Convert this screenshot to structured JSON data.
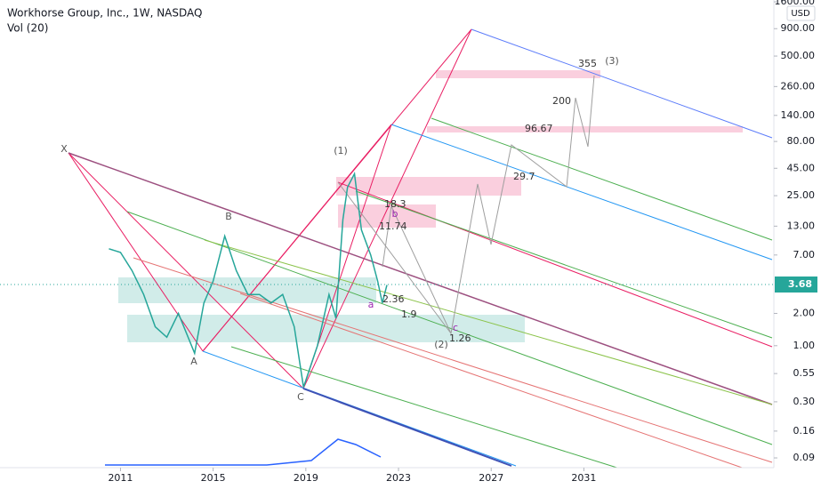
{
  "chart_data": {
    "type": "line",
    "title": "Workhorse Group, Inc., 1W, NASDAQ",
    "subtitle": "Vol (20)",
    "currency": "USD",
    "last_price": 3.68,
    "log_scale": true,
    "color": "#26a69a",
    "x": [
      2010.5,
      2011,
      2011.5,
      2012,
      2012.5,
      2013,
      2013.5,
      2014.2,
      2014.6,
      2015,
      2015.5,
      2016,
      2016.5,
      2017,
      2017.5,
      2018,
      2018.5,
      2018.9,
      2019.5,
      2020,
      2020.3,
      2020.6,
      2020.8,
      2021.1,
      2021.4,
      2021.8,
      2022.1,
      2022.3,
      2022.5
    ],
    "values": [
      8,
      7.4,
      5,
      3,
      1.5,
      1.2,
      2,
      0.85,
      2.5,
      4,
      10.5,
      5,
      3,
      3,
      2.5,
      3,
      1.5,
      0.41,
      1,
      3,
      1.8,
      15,
      30,
      40,
      12,
      7,
      4,
      2.5,
      3.68
    ],
    "xlim": [
      2005.8,
      2039.2
    ],
    "xticks": [
      2011,
      2015,
      2019,
      2023,
      2027,
      2031
    ],
    "ylim": [
      0.073,
      1665
    ],
    "yticks": [
      {
        "value": 1600,
        "label": "1600.00"
      },
      {
        "value": 900,
        "label": "900.00"
      },
      {
        "value": 500,
        "label": "500.00"
      },
      {
        "value": 260,
        "label": "260.00"
      },
      {
        "value": 140,
        "label": "140.00"
      },
      {
        "value": 80,
        "label": "80.00"
      },
      {
        "value": 45,
        "label": "45.00"
      },
      {
        "value": 25,
        "label": "25.00"
      },
      {
        "value": 13,
        "label": "13.00"
      },
      {
        "value": 7,
        "label": "7.00"
      },
      {
        "value": 2,
        "label": "2.00"
      },
      {
        "value": 1,
        "label": "1.00"
      },
      {
        "value": 0.55,
        "label": "0.55"
      },
      {
        "value": 0.3,
        "label": "0.30"
      },
      {
        "value": 0.16,
        "label": "0.16"
      },
      {
        "value": 0.09,
        "label": "0.09"
      }
    ],
    "annotations": [
      "X",
      "A",
      "B",
      "C",
      "(1)",
      "(2)",
      "(3)",
      "a",
      "b",
      "c",
      "18.3",
      "11.74",
      "2.36",
      "1.9",
      "1.26",
      "29.7",
      "96.67",
      "200",
      "355"
    ]
  }
}
